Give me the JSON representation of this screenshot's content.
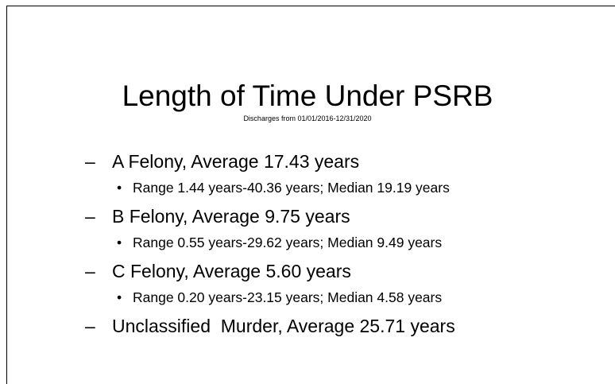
{
  "slide": {
    "title": "Length of Time Under PSRB",
    "subtitle": "Discharges from 01/01/2016-12/31/2020",
    "items": [
      {
        "text": "A Felony, Average 17.43 years",
        "sub": "Range 1.44 years-40.36 years; Median 19.19 years"
      },
      {
        "text": "B Felony, Average 9.75 years",
        "sub": "Range 0.55 years-29.62 years; Median 9.49 years"
      },
      {
        "text": "C Felony, Average 5.60 years",
        "sub": "Range 0.20 years-23.15 years; Median 4.58 years"
      },
      {
        "text": "Unclassified  Murder, Average 25.71 years"
      }
    ]
  }
}
